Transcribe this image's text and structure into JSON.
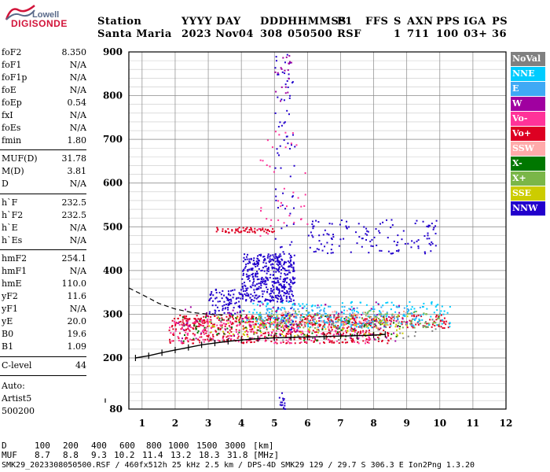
{
  "logo": {
    "line1": "Lowell",
    "line2": "DIGISONDE"
  },
  "header": {
    "row1": [
      "Station",
      "YYYY DAY",
      "DDD",
      "HHMMSS",
      "P1",
      "FFS",
      "S",
      "AXN",
      "PPS",
      "IGA",
      "PS"
    ],
    "row2": [
      "Santa Maria",
      "2023 Nov04",
      "308",
      "050500",
      "RSF",
      "",
      "1",
      "711",
      "100",
      "03+",
      "36"
    ]
  },
  "params": [
    {
      "label": "foF2",
      "value": "8.350"
    },
    {
      "label": "foF1",
      "value": "N/A"
    },
    {
      "label": "foF1p",
      "value": "N/A"
    },
    {
      "label": "foE",
      "value": "N/A"
    },
    {
      "label": "foEp",
      "value": "0.54"
    },
    {
      "label": "fxI",
      "value": "N/A"
    },
    {
      "label": "foEs",
      "value": "N/A"
    },
    {
      "label": "fmin",
      "value": "1.80"
    },
    {
      "label": "MUF(D)",
      "value": "31.78"
    },
    {
      "label": "M(D)",
      "value": "3.81"
    },
    {
      "label": "D",
      "value": "N/A"
    },
    {
      "label": "h`F",
      "value": "232.5"
    },
    {
      "label": "h`F2",
      "value": "232.5"
    },
    {
      "label": "h`E",
      "value": "N/A"
    },
    {
      "label": "h`Es",
      "value": "N/A"
    },
    {
      "label": "hmF2",
      "value": "254.1"
    },
    {
      "label": "hmF1",
      "value": "N/A"
    },
    {
      "label": "hmE",
      "value": "110.0"
    },
    {
      "label": "yF2",
      "value": "11.6"
    },
    {
      "label": "yF1",
      "value": "N/A"
    },
    {
      "label": "yE",
      "value": "20.0"
    },
    {
      "label": "B0",
      "value": "19.6"
    },
    {
      "label": "B1",
      "value": "1.09"
    },
    {
      "label": "C-level",
      "value": "44"
    }
  ],
  "auto": {
    "line1": "Auto:",
    "line2": "Artist5",
    "line3": "500200"
  },
  "legend": [
    {
      "label": "NoVal",
      "color": "#808080"
    },
    {
      "label": "NNE",
      "color": "#00ccff"
    },
    {
      "label": "E",
      "color": "#3fa9f5"
    },
    {
      "label": "W",
      "color": "#a000a0"
    },
    {
      "label": "Vo-",
      "color": "#ff3399"
    },
    {
      "label": "Vo+",
      "color": "#dd0022"
    },
    {
      "label": "SSW",
      "color": "#ffaaaa"
    },
    {
      "label": "X-",
      "color": "#007700"
    },
    {
      "label": "X+",
      "color": "#7ab648"
    },
    {
      "label": "SSE",
      "color": "#cccc00"
    },
    {
      "label": "NNW",
      "color": "#2200cc"
    }
  ],
  "bottom": {
    "d_label": "D",
    "d_values": [
      "100",
      "200",
      "400",
      "600",
      "800",
      "1000",
      "1500",
      "3000",
      "[km]"
    ],
    "muf_label": "MUF",
    "muf_values": [
      "8.7",
      "8.8",
      "9.3",
      "10.2",
      "11.4",
      "13.2",
      "18.3",
      "31.8",
      "[MHz]"
    ],
    "footer": "SMK29_2023308050500.RSF / 460fx512h 25 kHz 2.5 km / DPS-4D SMK29 129 / 29.7 S 306.3 E Ion2Png 1.3.20"
  },
  "chart_data": {
    "type": "scatter",
    "title": "",
    "xlabel": "",
    "ylabel": "",
    "xlim": [
      0.6,
      12
    ],
    "ylim": [
      80,
      900
    ],
    "y_log": false,
    "x_ticks": [
      "1",
      "2",
      "3",
      "4",
      "5",
      "6",
      "7",
      "8",
      "9",
      "10",
      "11",
      "12"
    ],
    "y_ticks": [
      "80",
      "200",
      "300",
      "400",
      "500",
      "600",
      "700",
      "800",
      "900"
    ],
    "grid": true,
    "legend_position": "right",
    "trace": {
      "name": "O-trace",
      "x": [
        0.8,
        1.2,
        1.6,
        2.0,
        2.4,
        2.8,
        3.2,
        3.6,
        4.0,
        4.5,
        5.0,
        5.5,
        6.0,
        6.5,
        7.0,
        7.5,
        8.0,
        8.35
      ],
      "y": [
        200,
        205,
        212,
        218,
        224,
        230,
        234,
        238,
        241,
        244,
        246,
        247,
        248,
        249,
        250,
        251,
        252,
        254
      ]
    },
    "profile": {
      "name": "profile",
      "x": [
        0.6,
        1.0,
        1.5,
        2.0,
        2.5,
        3.0,
        3.5
      ],
      "y": [
        360,
        345,
        325,
        312,
        304,
        300,
        298
      ]
    },
    "clusters": [
      {
        "series": "NNW",
        "x": [
          4.0,
          5.6
        ],
        "y": [
          330,
          440
        ],
        "count": 420
      },
      {
        "series": "NNW",
        "x": [
          3.0,
          4.0
        ],
        "y": [
          300,
          360
        ],
        "count": 90
      },
      {
        "series": "NNW",
        "x": [
          6.0,
          10.0
        ],
        "y": [
          440,
          520
        ],
        "count": 130
      },
      {
        "series": "Vo+",
        "x": [
          1.8,
          8.5
        ],
        "y": [
          235,
          300
        ],
        "count": 520
      },
      {
        "series": "Vo+",
        "x": [
          2.0,
          10.3
        ],
        "y": [
          270,
          300
        ],
        "count": 200
      },
      {
        "series": "Vo-",
        "x": [
          1.8,
          8.0
        ],
        "y": [
          235,
          290
        ],
        "count": 220
      },
      {
        "series": "NNE",
        "x": [
          4.0,
          10.3
        ],
        "y": [
          270,
          330
        ],
        "count": 220
      },
      {
        "series": "E",
        "x": [
          4.5,
          9.5
        ],
        "y": [
          275,
          320
        ],
        "count": 130
      },
      {
        "series": "X+",
        "x": [
          4.5,
          10.0
        ],
        "y": [
          270,
          310
        ],
        "count": 120
      },
      {
        "series": "SSE",
        "x": [
          3.0,
          9.0
        ],
        "y": [
          250,
          300
        ],
        "count": 110
      },
      {
        "series": "X-",
        "x": [
          2.0,
          9.0
        ],
        "y": [
          240,
          300
        ],
        "count": 90
      },
      {
        "series": "W",
        "x": [
          2.0,
          9.0
        ],
        "y": [
          240,
          330
        ],
        "count": 90
      },
      {
        "series": "SSW",
        "x": [
          5.0,
          9.0
        ],
        "y": [
          270,
          310
        ],
        "count": 60
      },
      {
        "series": "NoVal",
        "x": [
          3.0,
          10.0
        ],
        "y": [
          240,
          300
        ],
        "count": 60
      },
      {
        "series": "Vo+",
        "x": [
          3.2,
          5.0
        ],
        "y": [
          488,
          500
        ],
        "count": 60
      },
      {
        "series": "NNW",
        "x": [
          5.0,
          5.6
        ],
        "y": [
          250,
          900
        ],
        "count": 100
      },
      {
        "series": "W",
        "x": [
          5.0,
          5.5
        ],
        "y": [
          780,
          900
        ],
        "count": 20
      },
      {
        "series": "Vo-",
        "x": [
          4.5,
          6.0
        ],
        "y": [
          480,
          720
        ],
        "count": 40
      },
      {
        "series": "NNW",
        "x": [
          5.1,
          5.3
        ],
        "y": [
          80,
          120
        ],
        "count": 15
      }
    ]
  }
}
